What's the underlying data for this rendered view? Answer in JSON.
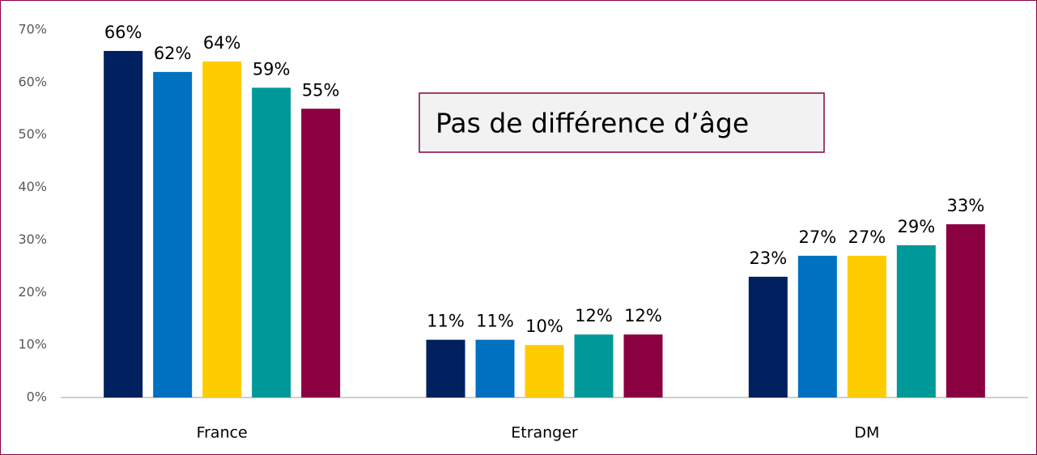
{
  "chart_data": {
    "type": "bar",
    "categories": [
      "France",
      "Etranger",
      "DM"
    ],
    "series": [
      {
        "color": "#002060",
        "values": [
          66,
          11,
          23
        ],
        "value_labels": [
          "66%",
          "11%",
          "23%"
        ]
      },
      {
        "color": "#0070c0",
        "values": [
          62,
          11,
          27
        ],
        "value_labels": [
          "62%",
          "11%",
          "27%"
        ]
      },
      {
        "color": "#ffcc00",
        "values": [
          64,
          10,
          27
        ],
        "value_labels": [
          "64%",
          "10%",
          "27%"
        ]
      },
      {
        "color": "#009999",
        "values": [
          59,
          12,
          29
        ],
        "value_labels": [
          "59%",
          "12%",
          "29%"
        ]
      },
      {
        "color": "#8b0041",
        "values": [
          55,
          12,
          33
        ],
        "value_labels": [
          "55%",
          "12%",
          "33%"
        ]
      }
    ],
    "ylim": [
      0,
      70
    ],
    "yticks": [
      {
        "value": 0,
        "label": "0%"
      },
      {
        "value": 10,
        "label": "10%"
      },
      {
        "value": 20,
        "label": "20%"
      },
      {
        "value": 30,
        "label": "30%"
      },
      {
        "value": 40,
        "label": "40%"
      },
      {
        "value": 50,
        "label": "50%"
      },
      {
        "value": 60,
        "label": "60%"
      },
      {
        "value": 70,
        "label": "70%"
      }
    ],
    "grid": false,
    "annotations": [
      "Pas de différence d’âge"
    ]
  }
}
